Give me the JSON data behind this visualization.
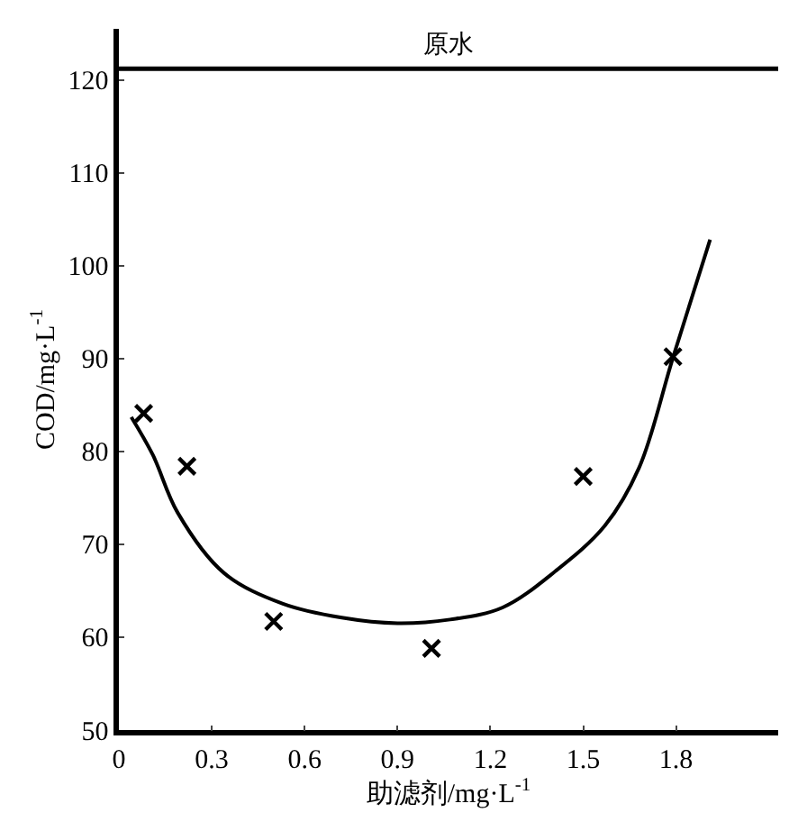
{
  "chart_data": {
    "type": "scatter",
    "xlabel": "助滤剂/mg·L$^{-1}$",
    "ylabel": "COD/mg·L$^{-1}$",
    "xlim": [
      0,
      2.13
    ],
    "ylim": [
      50,
      125.5
    ],
    "xticks": [
      0,
      0.3,
      0.6,
      0.9,
      1.2,
      1.5,
      1.8
    ],
    "yticks": [
      50,
      60,
      70,
      80,
      90,
      100,
      110,
      120
    ],
    "marker": "cross",
    "series": [
      {
        "color": "#000000",
        "x": [
          0.08,
          0.22,
          0.5,
          1.01,
          1.5,
          1.79
        ],
        "values": [
          84.1,
          78.4,
          61.7,
          58.8,
          77.3,
          90.2
        ]
      },
      {
        "type": "line",
        "color": "#000000",
        "marker": "none",
        "line_style": "solid",
        "x": [
          0.04,
          0.11,
          0.19,
          0.34,
          0.53,
          0.72,
          0.9,
          1.07,
          1.24,
          1.41,
          1.57,
          1.68,
          1.79,
          1.91
        ],
        "values": [
          83.7,
          79.6,
          73.4,
          66.9,
          63.6,
          62.1,
          61.5,
          61.9,
          63.2,
          67.1,
          72,
          78.2,
          90.1,
          102.8
        ]
      }
    ],
    "ref_lines": [
      {
        "axis": "y",
        "value": 121.2,
        "label": "原水",
        "color": "#000000",
        "line_style": "solid"
      }
    ]
  }
}
